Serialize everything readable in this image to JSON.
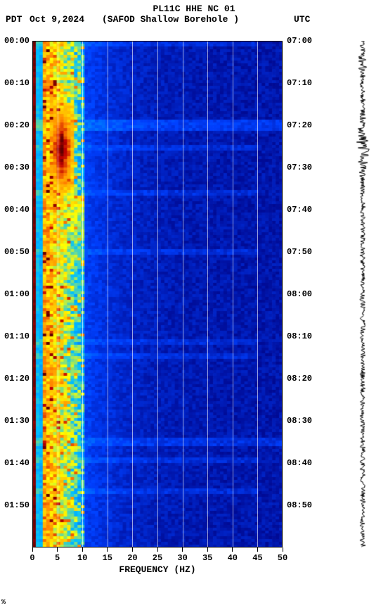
{
  "header": {
    "title": "PL11C HHE NC 01",
    "tz_left": "PDT",
    "date": "Oct 9,2024",
    "subtitle": "(SAFOD Shallow Borehole )",
    "tz_right": "UTC"
  },
  "spectrogram": {
    "type": "spectrogram",
    "xlabel": "FREQUENCY (HZ)",
    "xlim": [
      0,
      50
    ],
    "xticks": [
      0,
      5,
      10,
      15,
      20,
      25,
      30,
      35,
      40,
      45,
      50
    ],
    "ylim_left_minutes": [
      0,
      120
    ],
    "left_ticks": [
      "00:00",
      "00:10",
      "00:20",
      "00:30",
      "00:40",
      "00:50",
      "01:00",
      "01:10",
      "01:20",
      "01:30",
      "01:40",
      "01:50"
    ],
    "right_ticks": [
      "07:00",
      "07:10",
      "07:20",
      "07:30",
      "07:40",
      "07:50",
      "08:00",
      "08:10",
      "08:20",
      "08:30",
      "08:40",
      "08:50"
    ],
    "tick_fontsize": 12,
    "label_fontsize": 13,
    "background_color": "#0a1e8c",
    "grid_color": "#ffffff",
    "colormap": {
      "low": "#000080",
      "mid_low": "#0040ff",
      "mid": "#00c0ff",
      "mid_high": "#ffff00",
      "high_mid": "#ff8000",
      "high": "#c00000",
      "very_high": "#600000"
    },
    "hot_band_hz": [
      2,
      10
    ],
    "hot_event": {
      "time_left": "00:20",
      "freq_hz": [
        3,
        8
      ],
      "intensity": "very_high"
    },
    "columns": 72,
    "rows": 180
  },
  "waveform": {
    "color": "#000000",
    "samples": 720
  },
  "footer_mark": "%"
}
